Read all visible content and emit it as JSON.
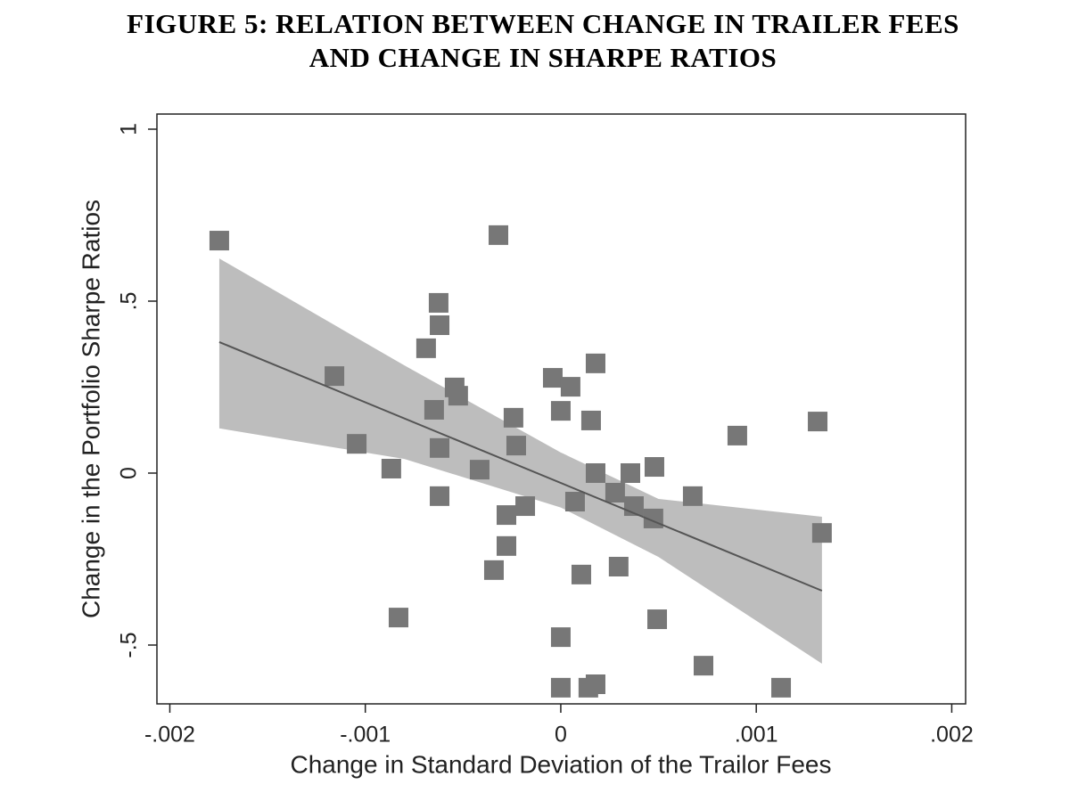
{
  "chart_data": {
    "type": "scatter",
    "title": [
      "FIGURE 5: RELATION BETWEEN CHANGE IN TRAILER FEES",
      "AND CHANGE IN SHARPE RATIOS"
    ],
    "x_label": "Change in Standard Deviation of the Trailor Fees",
    "y_label": "Change in the Portfolio Sharpe Ratios",
    "xlim": [
      -0.002066,
      0.002071
    ],
    "ylim": [
      -0.671,
      1.044
    ],
    "xticks": [
      {
        "value": -0.002,
        "label": "-.002"
      },
      {
        "value": -0.001,
        "label": "-.001"
      },
      0,
      {
        "value": 0.001,
        "label": ".001"
      },
      {
        "value": 0.002,
        "label": ".002"
      }
    ],
    "yticks": [
      {
        "value": -0.5,
        "label": "-.5"
      },
      0,
      {
        "value": 0.5,
        "label": ".5"
      },
      1
    ],
    "series": [
      {
        "color": "#777777",
        "x": [
          -0.001747,
          -0.000319,
          -0.000625,
          -0.00062,
          -0.000689,
          -0.001158,
          -0.000543,
          -0.000525,
          -0.000648,
          -0.001044,
          -0.00062,
          -0.000867,
          -0.000415,
          -0.00062,
          -0.000242,
          -0.000228,
          -4.1e-05,
          5e-05,
          0.000178,
          0,
          0.000155,
          0.000178,
          0.000356,
          0.000479,
          7.3e-05,
          0.000278,
          0.000374,
          0.000474,
          -0.000182,
          -0.000278,
          -0.000278,
          -0.000342,
          0.000105,
          0.000296,
          -0.00083,
          0,
          0.000493,
          0.000675,
          0.000903,
          0.001314,
          0.001336,
          0.00073,
          0,
          0.000141,
          0.000178,
          0.001127
        ],
        "values": [
          0.676,
          0.692,
          0.495,
          0.43,
          0.363,
          0.282,
          0.249,
          0.225,
          0.184,
          0.085,
          0.073,
          0.013,
          0.01,
          -0.067,
          0.161,
          0.08,
          0.277,
          0.251,
          0.319,
          0.181,
          0.153,
          0,
          0,
          0.018,
          -0.083,
          -0.057,
          -0.096,
          -0.132,
          -0.096,
          -0.122,
          -0.212,
          -0.282,
          -0.295,
          -0.272,
          -0.42,
          -0.477,
          -0.425,
          -0.067,
          0.109,
          0.15,
          -0.174,
          -0.56,
          -0.624,
          -0.624,
          -0.614,
          -0.624
        ]
      }
    ],
    "fit": {
      "color": "#555555",
      "x": [
        -0.001747,
        0.001336
      ],
      "values": [
        0.381,
        -0.342
      ]
    },
    "band": {
      "color": "#bdbdbd",
      "x": [
        -0.001747,
        -0.0008,
        0,
        0.0005,
        0.001336
      ],
      "upper": [
        0.624,
        0.313,
        0.06,
        -0.075,
        -0.127
      ],
      "lower": [
        0.13,
        0.041,
        -0.1,
        -0.244,
        -0.554
      ]
    }
  }
}
